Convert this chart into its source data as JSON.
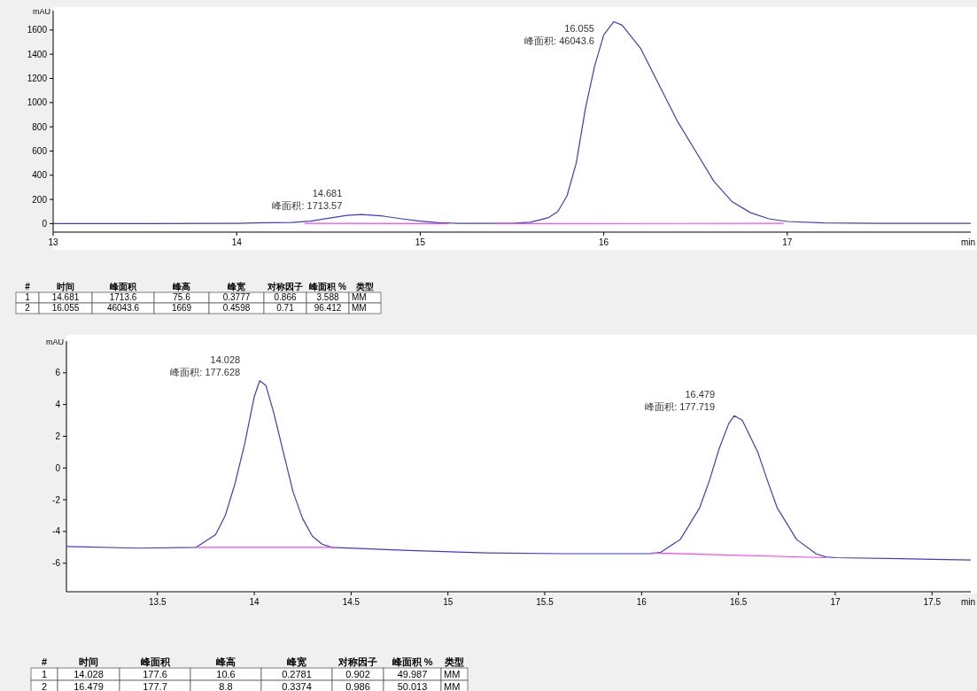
{
  "chart_data": [
    {
      "type": "line",
      "ylabel": "mAU",
      "xlabel": "min",
      "xlim": [
        13,
        18
      ],
      "ylim": [
        -70,
        1760
      ],
      "xticks": [
        13,
        14,
        15,
        16,
        17
      ],
      "yticks": [
        0,
        200,
        400,
        600,
        800,
        1000,
        1200,
        1400,
        1600
      ],
      "series": [
        {
          "color": "#3b3bdb",
          "x": [
            13.0,
            13.5,
            14.0,
            14.1,
            14.3,
            14.4,
            14.5,
            14.6,
            14.681,
            14.8,
            14.9,
            15.0,
            15.1,
            15.2,
            15.4,
            15.5,
            15.6,
            15.7,
            15.75,
            15.8,
            15.85,
            15.9,
            15.95,
            16.0,
            16.055,
            16.1,
            16.2,
            16.3,
            16.4,
            16.5,
            16.6,
            16.7,
            16.8,
            16.9,
            17.0,
            17.2,
            17.5,
            18.0
          ],
          "values": [
            0,
            1,
            3,
            6,
            10,
            20,
            45,
            68,
            76,
            62,
            40,
            20,
            8,
            3,
            2,
            3,
            12,
            50,
            100,
            230,
            500,
            950,
            1300,
            1560,
            1669,
            1640,
            1450,
            1150,
            850,
            600,
            350,
            180,
            90,
            40,
            18,
            6,
            3,
            2
          ]
        },
        {
          "type": "line",
          "color": "#ff40ff",
          "x": [
            14.37,
            15.15
          ],
          "values": [
            2,
            1
          ]
        },
        {
          "type": "line",
          "color": "#ff40ff",
          "x": [
            15.41,
            16.98
          ],
          "values": [
            0,
            2
          ]
        }
      ],
      "annotations": [
        {
          "text": "14.681",
          "x": 14.681,
          "y": 76
        },
        {
          "text": "峰面积: 1713.57",
          "x": 14.681,
          "y": 76
        },
        {
          "text": "16.055",
          "x": 16.055,
          "y": 1669
        },
        {
          "text": "峰面积: 46043.6",
          "x": 16.055,
          "y": 1669
        }
      ]
    },
    {
      "type": "other",
      "categories": [
        "#",
        "时间",
        "峰面积",
        "峰高",
        "峰宽",
        "对称因子",
        "峰面积 %",
        "类型"
      ],
      "cell_labels": [
        [
          "1",
          "14.681",
          "1713.6",
          "75.6",
          "0.3777",
          "0.866",
          "3.588",
          "MM"
        ],
        [
          "2",
          "16.055",
          "46043.6",
          "1669",
          "0.4598",
          "0.71",
          "96.412",
          "MM"
        ]
      ]
    },
    {
      "type": "line",
      "ylabel": "mAU",
      "xlabel": "min",
      "xlim": [
        13.03,
        17.7
      ],
      "ylim": [
        -7.8,
        8
      ],
      "xticks": [
        13.5,
        14,
        14.5,
        15,
        15.5,
        16,
        16.5,
        17,
        17.5
      ],
      "yticks": [
        -6,
        -4,
        -2,
        0,
        2,
        4,
        6
      ],
      "series": [
        {
          "color": "#3b3bdb",
          "x": [
            13.03,
            13.4,
            13.7,
            13.8,
            13.85,
            13.9,
            13.95,
            14.0,
            14.028,
            14.06,
            14.1,
            14.15,
            14.2,
            14.25,
            14.3,
            14.35,
            14.4,
            14.8,
            15.2,
            15.6,
            16.05,
            16.1,
            16.2,
            16.3,
            16.35,
            16.4,
            16.45,
            16.479,
            16.52,
            16.6,
            16.65,
            16.7,
            16.8,
            16.9,
            16.95,
            17.0,
            17.5,
            17.7
          ],
          "values": [
            -4.95,
            -5.05,
            -5.0,
            -4.2,
            -3.0,
            -1.0,
            1.5,
            4.5,
            5.5,
            5.2,
            3.5,
            1.0,
            -1.5,
            -3.2,
            -4.3,
            -4.8,
            -5.0,
            -5.2,
            -5.35,
            -5.4,
            -5.4,
            -5.3,
            -4.5,
            -2.5,
            -0.8,
            1.2,
            2.8,
            3.3,
            3.0,
            1.0,
            -0.8,
            -2.5,
            -4.5,
            -5.4,
            -5.6,
            -5.65,
            -5.75,
            -5.8
          ]
        },
        {
          "type": "line",
          "color": "#ff40ff",
          "x": [
            13.7,
            14.41
          ],
          "values": [
            -5.0,
            -5.0
          ]
        },
        {
          "type": "line",
          "color": "#ff40ff",
          "x": [
            16.05,
            16.95
          ],
          "values": [
            -5.35,
            -5.65
          ]
        }
      ],
      "annotations": [
        {
          "text": "14.028",
          "x": 14.028,
          "y": 5.5
        },
        {
          "text": "峰面积: 177.628",
          "x": 14.028,
          "y": 5.5
        },
        {
          "text": "16.479",
          "x": 16.479,
          "y": 3.3
        },
        {
          "text": "峰面积: 177.719",
          "x": 16.479,
          "y": 3.3
        }
      ]
    },
    {
      "type": "other",
      "categories": [
        "#",
        "时间",
        "峰面积",
        "峰高",
        "峰宽",
        "对称因子",
        "峰面积 %",
        "类型"
      ],
      "cell_labels": [
        [
          "1",
          "14.028",
          "177.6",
          "10.6",
          "0.2781",
          "0.902",
          "49.987",
          "MM"
        ],
        [
          "2",
          "16.479",
          "177.7",
          "8.8",
          "0.3374",
          "0.986",
          "50.013",
          "MM"
        ]
      ]
    }
  ]
}
